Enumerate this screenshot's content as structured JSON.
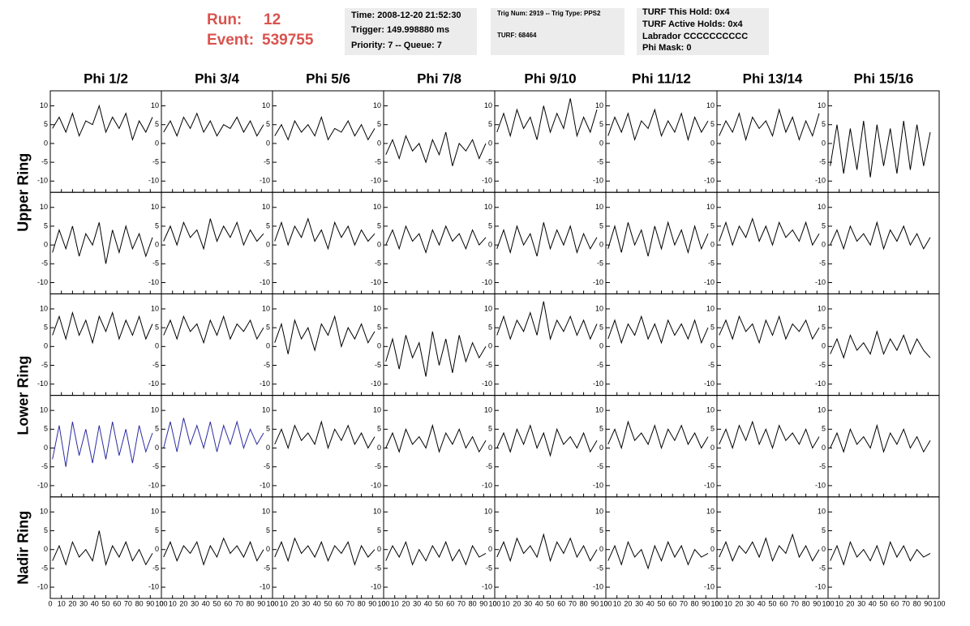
{
  "header": {
    "run_label": "Run:",
    "run": "12",
    "event_label": "Event:",
    "event": "539755"
  },
  "info_boxes": [
    [
      "Time: 2008-12-20 21:52:30",
      "Trigger: 149.998880 ms",
      "Priority: 7 -- Queue: 7"
    ],
    [
      "Trig Num: 2919 -- Trig Type: PPS2",
      "TURF: 68464"
    ],
    [
      "TURF This Hold: 0x4",
      "TURF Active Holds: 0x4",
      "Labrador CCCCCCCCCC",
      "Phi Mask: 0"
    ]
  ],
  "chart_data": {
    "type": "line",
    "columns": [
      "Phi 1/2",
      "Phi 3/4",
      "Phi 5/6",
      "Phi 7/8",
      "Phi 9/10",
      "Phi 11/12",
      "Phi 13/14",
      "Phi 15/16"
    ],
    "ring_labels": [
      "Upper Ring",
      "Lower Ring",
      "Nadir Ring"
    ],
    "xlim": [
      0,
      100
    ],
    "xticks": [
      0,
      10,
      20,
      30,
      40,
      50,
      60,
      70,
      80,
      90,
      100
    ],
    "ylim": [
      -13,
      14
    ],
    "yticks": [
      -10,
      -5,
      0,
      5,
      10
    ],
    "x": [
      2,
      8,
      14,
      20,
      26,
      32,
      38,
      44,
      50,
      56,
      62,
      68,
      74,
      80,
      86,
      92
    ],
    "rows": [
      [
        {
          "color": "#000000",
          "values": [
            4,
            7,
            3,
            8,
            2,
            6,
            5,
            10,
            3,
            7,
            4,
            8,
            1,
            6,
            3,
            7
          ]
        },
        {
          "color": "#000000",
          "values": [
            3,
            6,
            2,
            7,
            4,
            8,
            3,
            6,
            2,
            5,
            4,
            7,
            3,
            6,
            2,
            5
          ]
        },
        {
          "color": "#000000",
          "values": [
            2,
            5,
            1,
            6,
            3,
            5,
            2,
            7,
            1,
            4,
            3,
            6,
            2,
            5,
            1,
            4
          ]
        },
        {
          "color": "#000000",
          "values": [
            -3,
            1,
            -4,
            2,
            -2,
            0,
            -5,
            1,
            -3,
            3,
            -6,
            0,
            -2,
            1,
            -4,
            0
          ]
        },
        {
          "color": "#000000",
          "values": [
            3,
            8,
            2,
            9,
            4,
            7,
            1,
            10,
            3,
            8,
            4,
            12,
            2,
            7,
            3,
            9
          ]
        },
        {
          "color": "#000000",
          "values": [
            2,
            7,
            3,
            8,
            1,
            6,
            4,
            9,
            2,
            6,
            3,
            8,
            1,
            7,
            3,
            6
          ]
        },
        {
          "color": "#000000",
          "values": [
            2,
            6,
            3,
            8,
            1,
            7,
            4,
            6,
            2,
            9,
            3,
            7,
            1,
            6,
            2,
            8
          ]
        },
        {
          "color": "#000000",
          "values": [
            -6,
            5,
            -8,
            4,
            -7,
            6,
            -9,
            5,
            -6,
            4,
            -8,
            6,
            -7,
            5,
            -6,
            3
          ]
        }
      ],
      [
        {
          "color": "#000000",
          "values": [
            -2,
            4,
            -1,
            5,
            -3,
            3,
            0,
            6,
            -5,
            4,
            -2,
            5,
            -1,
            3,
            -3,
            2
          ]
        },
        {
          "color": "#000000",
          "values": [
            1,
            5,
            0,
            6,
            2,
            4,
            -1,
            7,
            1,
            5,
            2,
            6,
            0,
            4,
            1,
            3
          ]
        },
        {
          "color": "#000000",
          "values": [
            1,
            6,
            0,
            5,
            2,
            7,
            1,
            4,
            -1,
            6,
            2,
            5,
            0,
            4,
            1,
            3
          ]
        },
        {
          "color": "#000000",
          "values": [
            0,
            4,
            -1,
            5,
            1,
            3,
            -2,
            4,
            0,
            5,
            1,
            3,
            -1,
            4,
            0,
            2
          ]
        },
        {
          "color": "#000000",
          "values": [
            -1,
            4,
            -2,
            5,
            0,
            3,
            -3,
            6,
            -1,
            4,
            0,
            5,
            -2,
            3,
            -1,
            2
          ]
        },
        {
          "color": "#000000",
          "values": [
            -1,
            5,
            -2,
            6,
            0,
            4,
            -3,
            5,
            -1,
            6,
            0,
            4,
            -2,
            5,
            -1,
            3
          ]
        },
        {
          "color": "#000000",
          "values": [
            1,
            6,
            0,
            5,
            2,
            7,
            1,
            5,
            0,
            6,
            2,
            4,
            1,
            6,
            0,
            3
          ]
        },
        {
          "color": "#000000",
          "values": [
            0,
            4,
            -1,
            5,
            1,
            3,
            0,
            6,
            -1,
            4,
            1,
            5,
            0,
            3,
            -1,
            2
          ]
        }
      ],
      [
        {
          "color": "#000000",
          "values": [
            3,
            8,
            2,
            9,
            3,
            7,
            1,
            8,
            4,
            9,
            2,
            7,
            3,
            8,
            2,
            6
          ]
        },
        {
          "color": "#000000",
          "values": [
            3,
            7,
            2,
            8,
            4,
            6,
            1,
            7,
            3,
            8,
            2,
            6,
            4,
            7,
            2,
            5
          ]
        },
        {
          "color": "#000000",
          "values": [
            1,
            6,
            -2,
            7,
            2,
            5,
            -1,
            6,
            3,
            8,
            0,
            5,
            2,
            6,
            1,
            4
          ]
        },
        {
          "color": "#000000",
          "values": [
            -4,
            2,
            -6,
            3,
            -3,
            1,
            -8,
            4,
            -5,
            2,
            -7,
            3,
            -4,
            1,
            -3,
            0
          ]
        },
        {
          "color": "#000000",
          "values": [
            3,
            8,
            2,
            7,
            4,
            9,
            3,
            12,
            2,
            7,
            4,
            8,
            3,
            7,
            2,
            6
          ]
        },
        {
          "color": "#000000",
          "values": [
            2,
            7,
            1,
            6,
            3,
            8,
            2,
            6,
            1,
            7,
            3,
            6,
            2,
            7,
            1,
            5
          ]
        },
        {
          "color": "#000000",
          "values": [
            3,
            7,
            2,
            8,
            4,
            6,
            1,
            7,
            3,
            8,
            2,
            6,
            4,
            7,
            2,
            5
          ]
        },
        {
          "color": "#000000",
          "values": [
            -2,
            2,
            -3,
            3,
            -1,
            1,
            -2,
            4,
            -2,
            2,
            -1,
            3,
            -2,
            2,
            -1,
            -3
          ]
        }
      ],
      [
        {
          "color": "#2b2ba0",
          "values": [
            -3,
            6,
            -5,
            7,
            -2,
            5,
            -4,
            6,
            -3,
            7,
            -2,
            5,
            -4,
            6,
            -1,
            4
          ]
        },
        {
          "color": "#2b2ba0",
          "values": [
            0,
            7,
            -1,
            8,
            1,
            6,
            0,
            7,
            -1,
            6,
            1,
            7,
            0,
            5,
            1,
            4
          ]
        },
        {
          "color": "#000000",
          "values": [
            1,
            5,
            0,
            6,
            2,
            4,
            1,
            7,
            0,
            5,
            2,
            6,
            1,
            4,
            0,
            3
          ]
        },
        {
          "color": "#000000",
          "values": [
            0,
            4,
            -1,
            5,
            1,
            3,
            0,
            6,
            -1,
            4,
            1,
            5,
            0,
            3,
            -1,
            2
          ]
        },
        {
          "color": "#000000",
          "values": [
            0,
            4,
            -1,
            5,
            1,
            6,
            0,
            4,
            -2,
            5,
            1,
            3,
            0,
            4,
            -1,
            2
          ]
        },
        {
          "color": "#000000",
          "values": [
            1,
            5,
            0,
            7,
            2,
            4,
            1,
            6,
            0,
            5,
            2,
            6,
            1,
            4,
            0,
            3
          ]
        },
        {
          "color": "#000000",
          "values": [
            1,
            5,
            0,
            6,
            2,
            7,
            1,
            5,
            0,
            6,
            2,
            4,
            1,
            5,
            0,
            3
          ]
        },
        {
          "color": "#000000",
          "values": [
            0,
            4,
            -1,
            5,
            1,
            3,
            0,
            6,
            -1,
            4,
            1,
            5,
            0,
            3,
            -1,
            2
          ]
        }
      ],
      [
        {
          "color": "#000000",
          "values": [
            -3,
            1,
            -4,
            2,
            -2,
            0,
            -3,
            5,
            -4,
            1,
            -2,
            2,
            -3,
            0,
            -4,
            -1
          ]
        },
        {
          "color": "#000000",
          "values": [
            -2,
            2,
            -3,
            1,
            -1,
            2,
            -4,
            1,
            -2,
            3,
            -1,
            1,
            -2,
            2,
            -3,
            0
          ]
        },
        {
          "color": "#000000",
          "values": [
            -2,
            2,
            -3,
            3,
            -1,
            1,
            -2,
            2,
            -3,
            1,
            -1,
            2,
            -4,
            1,
            -2,
            0
          ]
        },
        {
          "color": "#000000",
          "values": [
            -3,
            1,
            -2,
            2,
            -4,
            0,
            -3,
            1,
            -2,
            2,
            -3,
            0,
            -4,
            1,
            -2,
            -1
          ]
        },
        {
          "color": "#000000",
          "values": [
            -2,
            2,
            -3,
            3,
            -1,
            1,
            -2,
            4,
            -3,
            2,
            -1,
            3,
            -2,
            1,
            -3,
            0
          ]
        },
        {
          "color": "#000000",
          "values": [
            -3,
            1,
            -4,
            2,
            -2,
            0,
            -5,
            1,
            -3,
            2,
            -2,
            1,
            -4,
            0,
            -2,
            -1
          ]
        },
        {
          "color": "#000000",
          "values": [
            -2,
            2,
            -3,
            1,
            -1,
            2,
            -2,
            3,
            -3,
            1,
            -1,
            4,
            -2,
            1,
            -3,
            0
          ]
        },
        {
          "color": "#000000",
          "values": [
            -3,
            1,
            -4,
            2,
            -2,
            0,
            -3,
            1,
            -4,
            2,
            -2,
            1,
            -3,
            0,
            -2,
            -1
          ]
        }
      ]
    ]
  }
}
